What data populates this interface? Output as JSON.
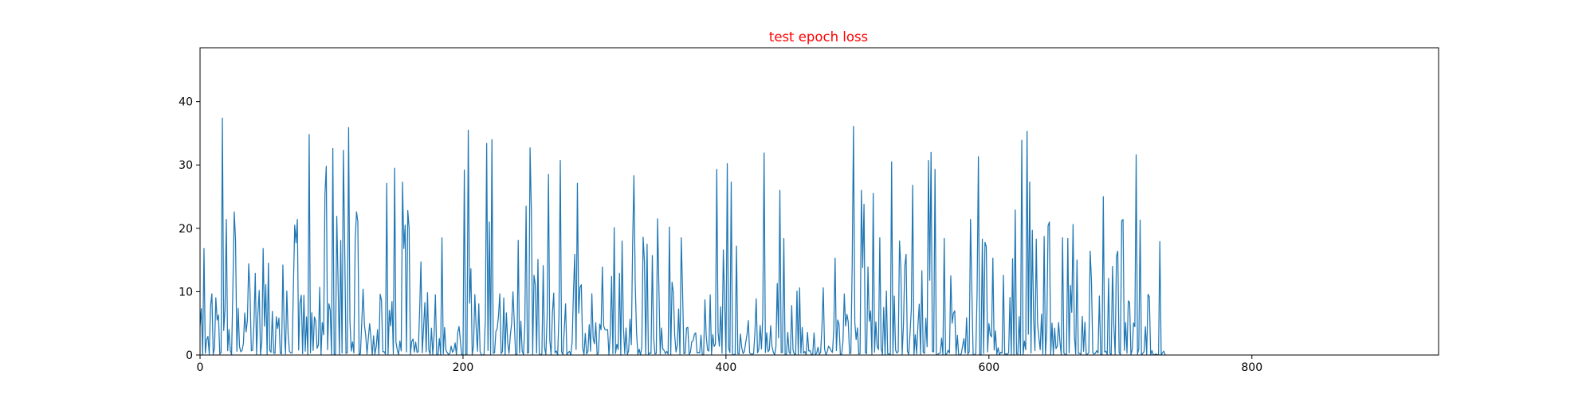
{
  "chart_data": {
    "type": "line",
    "title": "test epoch loss",
    "title_color": "#ff0000",
    "xlabel": "",
    "ylabel": "",
    "xlim": [
      0,
      942
    ],
    "ylim": [
      0,
      48.5
    ],
    "xticks": [
      0,
      200,
      400,
      600,
      800
    ],
    "yticks": [
      0,
      10,
      20,
      30,
      40
    ],
    "grid": false,
    "series": [
      {
        "color": "#1f77b4",
        "values": [
          4.62,
          7.32,
          0.0,
          16.8,
          0.28,
          2.41,
          2.94,
          0.13,
          7.74,
          9.68,
          0.09,
          1.07,
          9.05,
          5.51,
          6.31,
          0.14,
          0.4,
          37.4,
          3.87,
          7.24,
          21.4,
          0.68,
          4.03,
          0.7,
          0.06,
          10.8,
          22.6,
          18.1,
          0.59,
          7.37,
          1.36,
          0.51,
          0.77,
          1.85,
          6.64,
          3.65,
          5.43,
          14.4,
          10.1,
          0.66,
          0.77,
          4.9,
          12.9,
          0.1,
          6.48,
          10.2,
          0.05,
          2.12,
          16.8,
          4.56,
          11.1,
          0.06,
          14.5,
          0.73,
          0.44,
          6.88,
          0.31,
          0.25,
          6.05,
          4.19,
          5.82,
          0.28,
          0.19,
          14.2,
          4.14,
          0.17,
          10.1,
          3.25,
          0.57,
          0.33,
          0.32,
          10.7,
          20.5,
          17.7,
          21.4,
          0.78,
          8.18,
          9.42,
          0.2,
          9.42,
          0.61,
          6.02,
          0.04,
          34.8,
          0.33,
          6.68,
          0.73,
          6.01,
          5.33,
          1.06,
          1.54,
          10.7,
          0.01,
          5.11,
          3.17,
          25.4,
          29.8,
          0.84,
          8.08,
          7.11,
          0.08,
          32.6,
          0.06,
          0.01,
          21.9,
          11.2,
          0.1,
          18.1,
          0.31,
          32.3,
          17.4,
          0.24,
          0.35,
          35.9,
          5.4,
          0.62,
          2.08,
          0.32,
          18.0,
          22.6,
          21.1,
          0.06,
          0.22,
          5.1,
          10.4,
          4.83,
          3.09,
          0.16,
          2.66,
          4.95,
          2.58,
          0.0,
          3.03,
          0.11,
          1.33,
          4.01,
          0.07,
          9.59,
          8.62,
          0.52,
          0.54,
          0.14,
          27.1,
          0.02,
          7.03,
          4.59,
          8.46,
          0.17,
          29.5,
          2.08,
          0.82,
          0.04,
          2.21,
          0.65,
          27.3,
          16.8,
          20.5,
          0.48,
          22.8,
          20.1,
          0.08,
          2.14,
          2.52,
          0.47,
          2.02,
          0.43,
          0.51,
          6.91,
          14.7,
          0.35,
          4.3,
          8.3,
          0.51,
          9.83,
          0.79,
          0.08,
          4.24,
          0.09,
          3.15,
          9.52,
          0.06,
          0.02,
          2.61,
          0.0,
          18.5,
          0.17,
          4.34,
          0.8,
          0.37,
          0.09,
          0.24,
          1.39,
          0.43,
          0.77,
          1.91,
          0.0,
          3.56,
          4.51,
          2.24,
          0.07,
          0.01,
          29.2,
          0.0,
          0.04,
          35.5,
          8.18,
          13.6,
          0.0,
          1.4,
          9.53,
          4.39,
          0.6,
          8.08,
          0.56,
          0.0,
          0.02,
          0.07,
          5.76,
          33.4,
          0.71,
          21.0,
          0.06,
          34.0,
          0.27,
          0.35,
          3.69,
          4.19,
          6.18,
          9.68,
          0.21,
          0.55,
          9.01,
          0.0,
          6.66,
          1.93,
          0.24,
          3.11,
          5.0,
          9.98,
          5.2,
          0.04,
          0.11,
          18.1,
          0.28,
          5.35,
          0.63,
          0.05,
          4.62,
          23.5,
          0.28,
          0.38,
          32.7,
          22.7,
          0.12,
          12.6,
          11.1,
          0.31,
          15.1,
          0.17,
          0.0,
          0.18,
          14.1,
          1.2,
          0.04,
          6.17,
          28.5,
          2.38,
          0.02,
          6.64,
          9.78,
          0.34,
          0.64,
          0.0,
          6.39,
          30.7,
          0.51,
          0.05,
          3.92,
          8.08,
          0.03,
          0.38,
          0.57,
          0.0,
          2.05,
          9.92,
          15.9,
          0.88,
          27.1,
          6.61,
          10.7,
          11.1,
          1.13,
          0.07,
          3.42,
          0.17,
          0.56,
          4.79,
          0.6,
          9.68,
          2.6,
          1.77,
          5.09,
          0.04,
          0.34,
          4.88,
          3.97,
          13.9,
          4.58,
          4.0,
          3.95,
          4.02,
          0.0,
          3.21,
          12.4,
          0.21,
          20.1,
          0.24,
          1.71,
          0.87,
          12.9,
          0.0,
          18.0,
          4.4,
          0.21,
          4.25,
          0.07,
          0.72,
          5.65,
          1.62,
          17.3,
          28.3,
          11.1,
          3.48,
          0.04,
          0.92,
          0.0,
          1.2,
          18.6,
          14.8,
          0.11,
          17.5,
          0.07,
          0.34,
          0.25,
          15.7,
          2.7,
          0.16,
          0.24,
          21.5,
          10.5,
          0.16,
          4.26,
          0.95,
          0.7,
          0.2,
          0.57,
          0.16,
          20.2,
          0.0,
          11.5,
          9.82,
          3.15,
          0.47,
          1.54,
          7.27,
          0.01,
          18.5,
          10.0,
          0.22,
          0.27,
          4.27,
          4.37,
          0.06,
          0.46,
          2.12,
          2.24,
          3.27,
          3.51,
          0.32,
          0.43,
          0.31,
          3.12,
          0.0,
          0.0,
          8.72,
          2.96,
          0.79,
          0.62,
          9.48,
          0.03,
          3.22,
          1.35,
          1.74,
          29.3,
          3.57,
          1.37,
          7.62,
          0.28,
          16.6,
          8.51,
          0.01,
          30.2,
          1.1,
          0.38,
          27.3,
          0.12,
          0.0,
          0.14,
          17.2,
          0.23,
          0.16,
          3.32,
          1.16,
          0.23,
          0.55,
          1.97,
          3.22,
          5.44,
          0.3,
          0.16,
          0.14,
          0.2,
          3.45,
          8.88,
          0.33,
          0.93,
          4.67,
          0.95,
          5.99,
          31.9,
          0.39,
          3.52,
          0.51,
          0.82,
          4.64,
          1.34,
          0.46,
          0.0,
          1.32,
          11.3,
          2.71,
          26.0,
          0.4,
          0.39,
          18.4,
          0.0,
          0.14,
          3.58,
          0.44,
          0.18,
          7.81,
          0.76,
          0.13,
          0.06,
          10.1,
          0.11,
          10.6,
          0.26,
          4.34,
          0.29,
          0.55,
          0.0,
          3.58,
          0.63,
          0.7,
          0.04,
          0.14,
          3.5,
          0.05,
          0.28,
          1.23,
          0.08,
          0.43,
          4.39,
          10.6,
          0.94,
          0.02,
          0.5,
          1.39,
          1.11,
          0.68,
          0.41,
          3.99,
          15.3,
          0.7,
          5.53,
          4.83,
          0.06,
          0.11,
          2.16,
          9.64,
          4.57,
          6.43,
          5.27,
          0.19,
          0.31,
          14.1,
          36.1,
          5.17,
          2.44,
          4.28,
          0.15,
          0.22,
          26.0,
          13.8,
          23.8,
          0.36,
          0.23,
          13.9,
          5.33,
          6.95,
          0.07,
          25.5,
          0.44,
          5.25,
          1.34,
          0.87,
          18.5,
          1.08,
          0.04,
          7.5,
          0.08,
          10.1,
          0.17,
          0.17,
          0.12,
          30.5,
          0.12,
          9.3,
          0.79,
          0.3,
          0.55,
          18.0,
          13.9,
          0.06,
          4.74,
          14.0,
          15.9,
          0.62,
          0.06,
          3.42,
          7.28,
          26.8,
          0.03,
          3.21,
          0.16,
          4.6,
          8.03,
          0.13,
          13.3,
          0.45,
          0.24,
          5.81,
          1.3,
          30.7,
          11.8,
          32.0,
          0.56,
          0.49,
          29.3,
          0.08,
          0.06,
          0.27,
          0.29,
          2.67,
          0.09,
          18.4,
          0.05,
          0.23,
          0.75,
          0.3,
          12.5,
          5.01,
          6.58,
          6.98,
          0.01,
          3.1,
          0.01,
          0.0,
          0.21,
          1.44,
          2.58,
          0.29,
          5.89,
          0.14,
          0.49,
          21.4,
          10.3,
          0.05,
          0.02,
          0.23,
          9.76,
          31.3,
          0.07,
          0.0,
          18.3,
          0.23,
          17.8,
          17.1,
          0.48,
          4.94,
          3.21,
          2.85,
          15.3,
          0.78,
          3.81,
          0.1,
          1.15,
          0.03,
          0.44,
          0.29,
          12.6,
          0.09,
          0.2,
          0.06,
          0.34,
          9.1,
          0.03,
          15.2,
          0.03,
          22.9,
          0.17,
          0.15,
          6.06,
          0.04,
          33.9,
          0.02,
          2.21,
          0.82,
          35.3,
          3.28,
          27.3,
          0.31,
          19.7,
          5.64,
          0.69,
          18.3,
          4.91,
          2.73,
          0.84,
          6.46,
          0.16,
          18.7,
          0.03,
          3.94,
          20.4,
          21.0,
          0.01,
          5.02,
          0.01,
          4.24,
          1.01,
          1.4,
          5.13,
          2.13,
          0.05,
          18.5,
          0.33,
          0.04,
          0.15,
          18.4,
          0.35,
          11.0,
          6.74,
          20.6,
          3.04,
          0.16,
          15.0,
          0.25,
          0.27,
          0.09,
          6.1,
          0.58,
          5.18,
          0.08,
          0.12,
          0.4,
          16.4,
          11.6,
          0.33,
          0.14,
          0.29,
          0.69,
          0.3,
          9.31,
          0.09,
          0.1,
          25.0,
          0.49,
          0.61,
          0.04,
          12.1,
          0.28,
          0.0,
          14.0,
          4.7,
          0.05,
          15.6,
          16.4,
          0.38,
          0.06,
          21.2,
          21.4,
          0.74,
          5.14,
          0.27,
          8.55,
          8.31,
          0.02,
          0.89,
          5.07,
          4.47,
          31.6,
          0.1,
          1.01,
          21.3,
          0.02,
          0.26,
          0.53,
          4.48,
          0.11,
          9.58,
          9.2,
          0.01,
          0.71,
          0.02,
          0.05,
          0.18,
          0.01,
          0.1,
          17.9,
          0.03,
          0.36,
          0.61,
          0.02
        ]
      }
    ]
  }
}
